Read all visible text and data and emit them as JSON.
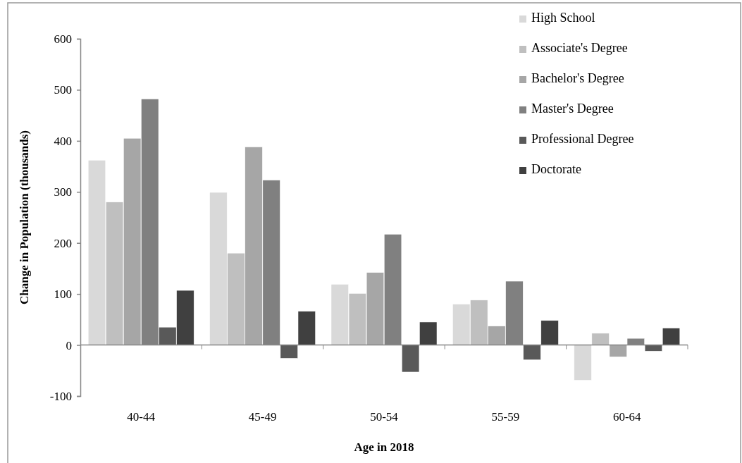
{
  "chart_data": {
    "type": "bar",
    "xlabel": "Age in 2018",
    "ylabel": "Change in Population (thousands)",
    "categories": [
      "40-44",
      "45-49",
      "50-54",
      "55-59",
      "60-64"
    ],
    "series": [
      {
        "name": "High School",
        "color": "#d9d9d9",
        "values": [
          362,
          299,
          119,
          80,
          -69
        ]
      },
      {
        "name": "Associate's Degree",
        "color": "#bfbfbf",
        "values": [
          280,
          180,
          101,
          88,
          23
        ]
      },
      {
        "name": "Bachelor's Degree",
        "color": "#a6a6a6",
        "values": [
          405,
          388,
          142,
          37,
          -23
        ]
      },
      {
        "name": "Master's Degree",
        "color": "#808080",
        "values": [
          482,
          323,
          217,
          125,
          13
        ]
      },
      {
        "name": "Professional Degree",
        "color": "#595959",
        "values": [
          35,
          -26,
          -53,
          -29,
          -12
        ]
      },
      {
        "name": "Doctorate",
        "color": "#404040",
        "values": [
          107,
          66,
          45,
          48,
          33
        ]
      }
    ],
    "ylim": [
      -100,
      600
    ],
    "yticks": [
      -100,
      0,
      100,
      200,
      300,
      400,
      500,
      600
    ],
    "legend": "top right"
  }
}
